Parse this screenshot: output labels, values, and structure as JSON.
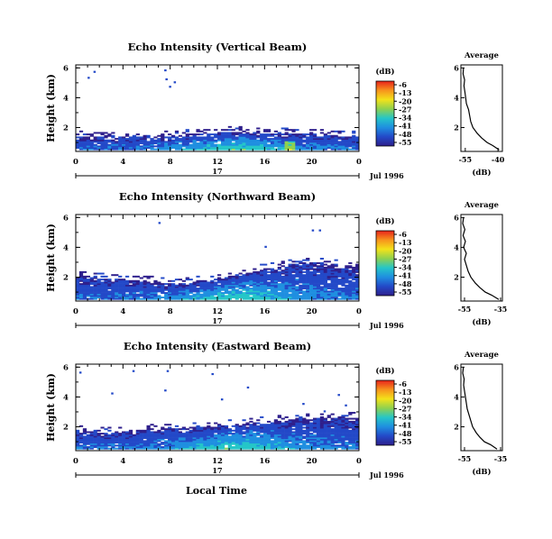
{
  "figure": {
    "xlabel": "Local Time",
    "colorbar_unit": "(dB)",
    "colorbar_ticks": [
      "-6",
      "-13",
      "-20",
      "-27",
      "-34",
      "-41",
      "-48",
      "-55"
    ],
    "colorbar_colors": [
      "#e8231b",
      "#f7941d",
      "#f3e21a",
      "#8fd14f",
      "#25c6c8",
      "#1f8fe0",
      "#2349c8",
      "#2e1f8c"
    ],
    "date_label": "Jul 1996",
    "day_label": "17",
    "side_title": "Average",
    "side_xlabel": "(dB)"
  },
  "chart_data": [
    {
      "type": "heatmap",
      "title": "Echo Intensity (Vertical Beam)",
      "ylabel": "Height (km)",
      "xlabel": "Local Time",
      "x_ticks": [
        "0",
        "4",
        "8",
        "12",
        "16",
        "20",
        "0"
      ],
      "xlim": [
        0,
        24
      ],
      "y_ticks": [
        "6",
        "4",
        "2"
      ],
      "ylim": [
        0.4,
        6.2
      ],
      "color_scale_db": [
        -55,
        -6
      ],
      "layer_top_km": [
        [
          0,
          1.4
        ],
        [
          2,
          1.3
        ],
        [
          4,
          1.3
        ],
        [
          6,
          1.35
        ],
        [
          8,
          1.4
        ],
        [
          10,
          1.5
        ],
        [
          12,
          1.6
        ],
        [
          14,
          1.7
        ],
        [
          16,
          1.6
        ],
        [
          18,
          1.55
        ],
        [
          20,
          1.5
        ],
        [
          22,
          1.4
        ],
        [
          24,
          1.35
        ]
      ],
      "echoes_aloft": [
        [
          1.5,
          5.7
        ],
        [
          1.0,
          5.3
        ],
        [
          7.5,
          5.8
        ],
        [
          7.6,
          5.2
        ],
        [
          7.9,
          4.7
        ],
        [
          8.3,
          5.0
        ]
      ],
      "profile": {
        "title": "Average",
        "xlabel": "(dB)",
        "x_ticks": [
          "-55",
          "-40"
        ],
        "xlim": [
          -57,
          -38
        ],
        "y_ticks": [
          "6",
          "4",
          "2"
        ],
        "ylim": [
          0.4,
          6.2
        ],
        "height_km": [
          0.5,
          0.8,
          1.0,
          1.3,
          1.6,
          2.0,
          2.4,
          2.8,
          3.2,
          3.6,
          4.0,
          4.4,
          4.8,
          5.2,
          5.6,
          6.0
        ],
        "value_db": [
          -39.5,
          -42.5,
          -45.0,
          -47.5,
          -49.5,
          -51.5,
          -52.5,
          -53.0,
          -53.5,
          -54.5,
          -54.8,
          -55.2,
          -55.6,
          -55.3,
          -56.0,
          -55.8
        ]
      }
    },
    {
      "type": "heatmap",
      "title": "Echo Intensity (Northward Beam)",
      "ylabel": "Height (km)",
      "xlabel": "Local Time",
      "x_ticks": [
        "0",
        "4",
        "8",
        "12",
        "16",
        "20",
        "0"
      ],
      "xlim": [
        0,
        24
      ],
      "y_ticks": [
        "6",
        "4",
        "2"
      ],
      "ylim": [
        0.4,
        6.2
      ],
      "color_scale_db": [
        -55,
        -6
      ],
      "layer_top_km": [
        [
          0,
          2.1
        ],
        [
          2,
          1.9
        ],
        [
          4,
          1.8
        ],
        [
          6,
          1.7
        ],
        [
          8,
          1.5
        ],
        [
          10,
          1.6
        ],
        [
          12,
          1.9
        ],
        [
          14,
          2.2
        ],
        [
          16,
          2.5
        ],
        [
          18,
          2.8
        ],
        [
          20,
          3.0
        ],
        [
          22,
          2.8
        ],
        [
          24,
          2.6
        ]
      ],
      "echoes_aloft": [
        [
          7.0,
          5.6
        ],
        [
          16.0,
          4.0
        ],
        [
          20.0,
          5.1
        ],
        [
          20.6,
          5.1
        ]
      ],
      "profile": {
        "title": "Average",
        "xlabel": "(dB)",
        "x_ticks": [
          "-55",
          "-35"
        ],
        "xlim": [
          -57,
          -34
        ],
        "y_ticks": [
          "6",
          "4",
          "2"
        ],
        "ylim": [
          0.4,
          6.2
        ],
        "height_km": [
          0.5,
          0.8,
          1.0,
          1.3,
          1.6,
          2.0,
          2.4,
          2.8,
          3.2,
          3.6,
          4.0,
          4.4,
          4.8,
          5.2,
          5.6,
          6.0
        ],
        "value_db": [
          -36.0,
          -40.0,
          -43.5,
          -46.5,
          -49.0,
          -51.5,
          -53.0,
          -54.0,
          -55.0,
          -54.0,
          -55.5,
          -54.5,
          -55.8,
          -54.8,
          -56.0,
          -55.5
        ]
      }
    },
    {
      "type": "heatmap",
      "title": "Echo Intensity (Eastward Beam)",
      "ylabel": "Height (km)",
      "xlabel": "Local Time",
      "x_ticks": [
        "0",
        "4",
        "8",
        "12",
        "16",
        "20",
        "0"
      ],
      "xlim": [
        0,
        24
      ],
      "y_ticks": [
        "6",
        "4",
        "2"
      ],
      "ylim": [
        0.4,
        6.2
      ],
      "color_scale_db": [
        -55,
        -6
      ],
      "layer_top_km": [
        [
          0,
          1.7
        ],
        [
          2,
          1.6
        ],
        [
          4,
          1.6
        ],
        [
          6,
          1.8
        ],
        [
          8,
          1.9
        ],
        [
          10,
          1.9
        ],
        [
          12,
          2.0
        ],
        [
          14,
          2.1
        ],
        [
          16,
          2.3
        ],
        [
          18,
          2.4
        ],
        [
          20,
          2.5
        ],
        [
          22,
          2.6
        ],
        [
          24,
          2.6
        ]
      ],
      "echoes_aloft": [
        [
          0.3,
          5.6
        ],
        [
          4.8,
          5.7
        ],
        [
          7.7,
          5.7
        ],
        [
          3.0,
          4.2
        ],
        [
          7.5,
          4.4
        ],
        [
          11.5,
          5.5
        ],
        [
          12.3,
          3.8
        ],
        [
          14.5,
          4.6
        ],
        [
          19.2,
          3.5
        ],
        [
          22.2,
          4.1
        ],
        [
          22.8,
          3.4
        ],
        [
          21.0,
          3.0
        ]
      ],
      "profile": {
        "title": "Average",
        "xlabel": "(dB)",
        "x_ticks": [
          "-55",
          "-35"
        ],
        "xlim": [
          -57,
          -34
        ],
        "y_ticks": [
          "6",
          "4",
          "2"
        ],
        "ylim": [
          0.4,
          6.2
        ],
        "height_km": [
          0.5,
          0.8,
          1.0,
          1.3,
          1.6,
          2.0,
          2.4,
          2.8,
          3.2,
          3.6,
          4.0,
          4.4,
          4.8,
          5.2,
          5.6,
          6.0
        ],
        "value_db": [
          -37.0,
          -40.5,
          -44.0,
          -46.5,
          -48.5,
          -50.5,
          -51.5,
          -52.5,
          -53.5,
          -54.0,
          -54.5,
          -55.0,
          -55.5,
          -55.2,
          -56.0,
          -55.6
        ]
      }
    }
  ]
}
